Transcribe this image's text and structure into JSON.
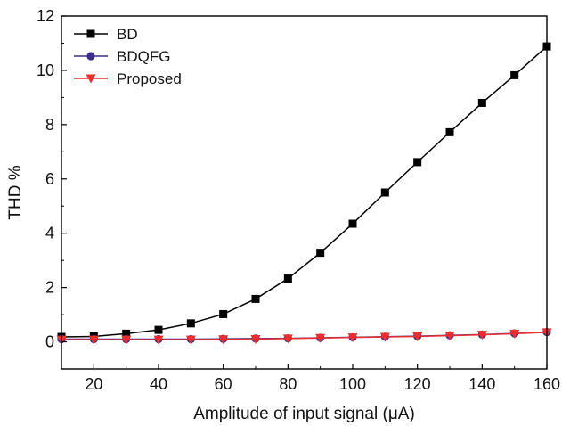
{
  "chart_data": {
    "type": "line",
    "title": "",
    "xlabel": "Amplitude of input signal (μA)",
    "ylabel": "THD %",
    "xlim": [
      10,
      160
    ],
    "ylim": [
      -1,
      12
    ],
    "x_ticks": [
      "20",
      "40",
      "60",
      "80",
      "100",
      "120",
      "140",
      "160"
    ],
    "y_ticks": [
      "0",
      "2",
      "4",
      "6",
      "8",
      "10",
      "12"
    ],
    "x_tick_values": [
      20,
      40,
      60,
      80,
      100,
      120,
      140,
      160
    ],
    "y_tick_values": [
      0,
      2,
      4,
      6,
      8,
      10,
      12
    ],
    "grid": false,
    "legend_position": "top-left",
    "x": [
      10,
      20,
      30,
      40,
      50,
      60,
      70,
      80,
      90,
      100,
      110,
      120,
      130,
      140,
      150,
      160
    ],
    "series": [
      {
        "name": "BD",
        "color": "#000000",
        "marker": "square",
        "values": [
          0.18,
          0.2,
          0.3,
          0.44,
          0.68,
          1.02,
          1.58,
          2.33,
          3.28,
          4.35,
          5.5,
          6.62,
          7.72,
          8.8,
          9.82,
          10.88
        ]
      },
      {
        "name": "BDQFG",
        "color": "#3b2e8c",
        "marker": "circle",
        "values": [
          0.1,
          0.1,
          0.1,
          0.1,
          0.1,
          0.11,
          0.12,
          0.13,
          0.15,
          0.17,
          0.19,
          0.21,
          0.24,
          0.27,
          0.31,
          0.36
        ]
      },
      {
        "name": "Proposed",
        "color": "#ee2c2c",
        "marker": "triangle-down",
        "values": [
          0.08,
          0.08,
          0.08,
          0.08,
          0.08,
          0.09,
          0.1,
          0.12,
          0.14,
          0.16,
          0.18,
          0.2,
          0.23,
          0.26,
          0.3,
          0.35
        ]
      }
    ]
  }
}
